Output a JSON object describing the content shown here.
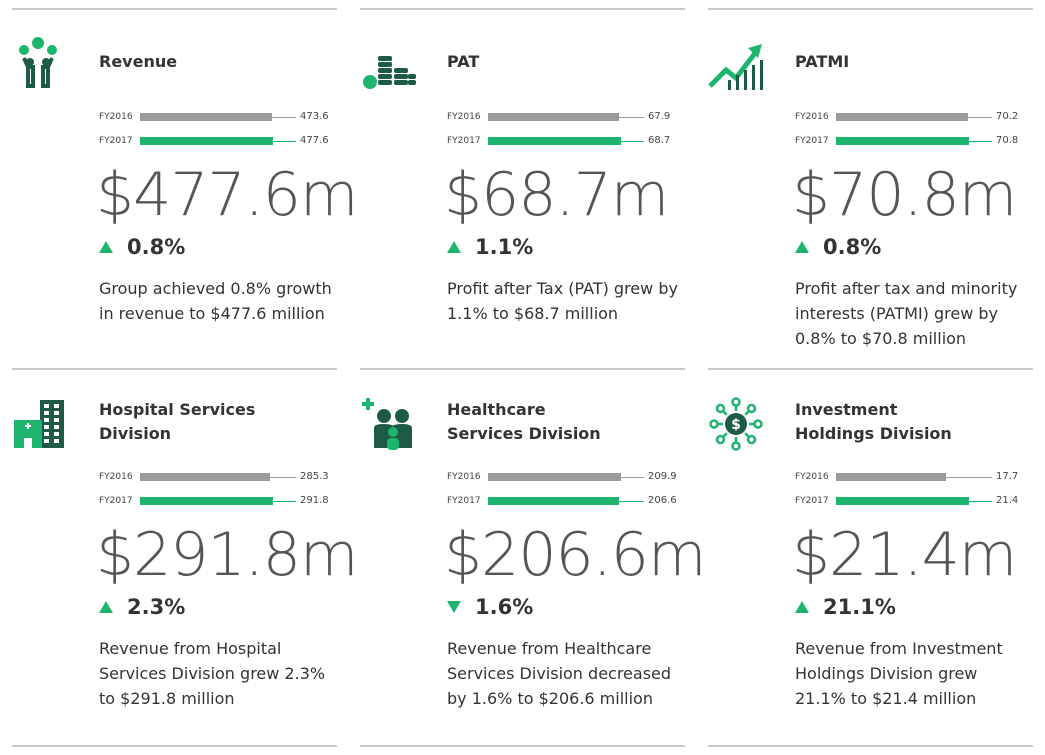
{
  "cards": [
    {
      "title": "Revenue",
      "bars": [
        {
          "label": "FY2016",
          "value": 473.6
        },
        {
          "label": "FY2017",
          "value": 477.6
        }
      ],
      "amount": "$477.6m",
      "change": "0.8%",
      "direction": "up",
      "description": "Group achieved 0.8% growth in revenue to $477.6 million"
    },
    {
      "title": "PAT",
      "bars": [
        {
          "label": "FY2016",
          "value": 67.9
        },
        {
          "label": "FY2017",
          "value": 68.7
        }
      ],
      "amount": "$68.7m",
      "change": "1.1%",
      "direction": "up",
      "description": "Profit after Tax (PAT) grew by 1.1% to $68.7 million"
    },
    {
      "title": "PATMI",
      "bars": [
        {
          "label": "FY2016",
          "value": 70.2
        },
        {
          "label": "FY2017",
          "value": 70.8
        }
      ],
      "amount": "$70.8m",
      "change": "0.8%",
      "direction": "up",
      "description": "Profit after tax and minority interests (PATMI) grew by 0.8% to $70.8 million"
    },
    {
      "title": "Hospital Services Division",
      "bars": [
        {
          "label": "FY2016",
          "value": 285.3
        },
        {
          "label": "FY2017",
          "value": 291.8
        }
      ],
      "amount": "$291.8m",
      "change": "2.3%",
      "direction": "up",
      "description": "Revenue from Hospital Services Division grew 2.3% to $291.8 million"
    },
    {
      "title": "Healthcare Services Division",
      "bars": [
        {
          "label": "FY2016",
          "value": 209.9
        },
        {
          "label": "FY2017",
          "value": 206.6
        }
      ],
      "amount": "$206.6m",
      "change": "1.6%",
      "direction": "down",
      "description": "Revenue from Healthcare Services Division decreased by 1.6% to $206.6 million"
    },
    {
      "title": "Investment Holdings Division",
      "bars": [
        {
          "label": "FY2016",
          "value": 17.7
        },
        {
          "label": "FY2017",
          "value": 21.4
        }
      ],
      "amount": "$21.4m",
      "change": "21.1%",
      "direction": "up",
      "description": "Revenue from Investment Holdings Division grew 21.1% to $21.4 million"
    }
  ],
  "colors": {
    "previous": "#9b9b9b",
    "current": "#1db46e"
  }
}
